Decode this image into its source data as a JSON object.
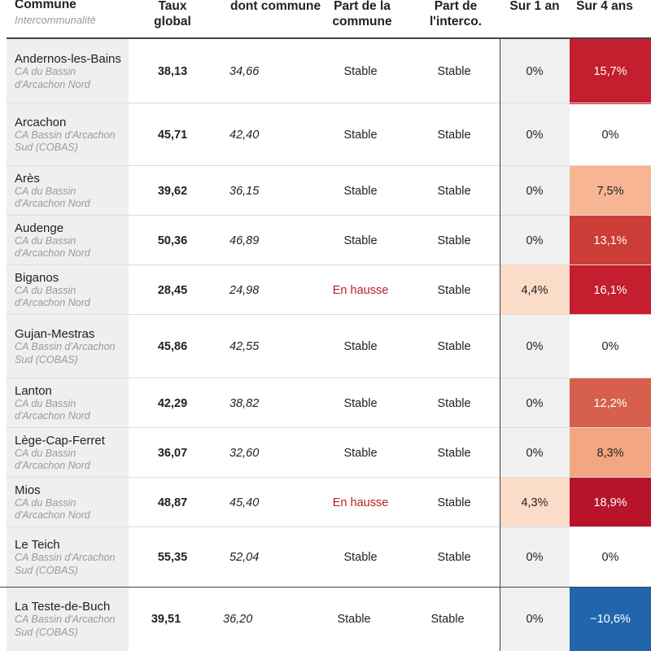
{
  "chart_data": {
    "type": "table",
    "columns": [
      {
        "label": "Commune",
        "sublabel": "Intercommunalité"
      },
      {
        "label": "Taux global"
      },
      {
        "label": "dont commune"
      },
      {
        "label": "Part de la commune"
      },
      {
        "label": "Part de l'interco."
      },
      {
        "label": "Sur 1 an"
      },
      {
        "label": "Sur 4 ans"
      }
    ],
    "rows": [
      {
        "commune": "Andernos-les-Bains",
        "interco": "CA du Bassin d'Arcachon Nord",
        "taux": "38,13",
        "dont": "34,66",
        "part_commune": "Stable",
        "part_interco": "Stable",
        "sur1": "0%",
        "sur4": "15,7%"
      },
      {
        "commune": "Arcachon",
        "interco": "CA Bassin d'Arcachon Sud (COBAS)",
        "taux": "45,71",
        "dont": "42,40",
        "part_commune": "Stable",
        "part_interco": "Stable",
        "sur1": "0%",
        "sur4": "0%"
      },
      {
        "commune": "Arès",
        "interco": "CA du Bassin d'Arcachon Nord",
        "taux": "39,62",
        "dont": "36,15",
        "part_commune": "Stable",
        "part_interco": "Stable",
        "sur1": "0%",
        "sur4": "7,5%"
      },
      {
        "commune": "Audenge",
        "interco": "CA du Bassin d'Arcachon Nord",
        "taux": "50,36",
        "dont": "46,89",
        "part_commune": "Stable",
        "part_interco": "Stable",
        "sur1": "0%",
        "sur4": "13,1%"
      },
      {
        "commune": "Biganos",
        "interco": "CA du Bassin d'Arcachon Nord",
        "taux": "28,45",
        "dont": "24,98",
        "part_commune": "En hausse",
        "part_interco": "Stable",
        "sur1": "4,4%",
        "sur4": "16,1%"
      },
      {
        "commune": "Gujan-Mestras",
        "interco": "CA Bassin d'Arcachon Sud (COBAS)",
        "taux": "45,86",
        "dont": "42,55",
        "part_commune": "Stable",
        "part_interco": "Stable",
        "sur1": "0%",
        "sur4": "0%"
      },
      {
        "commune": "Lanton",
        "interco": "CA du Bassin d'Arcachon Nord",
        "taux": "42,29",
        "dont": "38,82",
        "part_commune": "Stable",
        "part_interco": "Stable",
        "sur1": "0%",
        "sur4": "12,2%"
      },
      {
        "commune": "Lège-Cap-Ferret",
        "interco": "CA du Bassin d'Arcachon Nord",
        "taux": "36,07",
        "dont": "32,60",
        "part_commune": "Stable",
        "part_interco": "Stable",
        "sur1": "0%",
        "sur4": "8,3%"
      },
      {
        "commune": "Mios",
        "interco": "CA du Bassin d'Arcachon Nord",
        "taux": "48,87",
        "dont": "45,40",
        "part_commune": "En hausse",
        "part_interco": "Stable",
        "sur1": "4,3%",
        "sur4": "18,9%"
      },
      {
        "commune": "Le Teich",
        "interco": "CA Bassin d'Arcachon Sud (COBAS)",
        "taux": "55,35",
        "dont": "52,04",
        "part_commune": "Stable",
        "part_interco": "Stable",
        "sur1": "0%",
        "sur4": "0%"
      },
      {
        "commune": "La Teste-de-Buch",
        "interco": "CA Bassin d'Arcachon Sud (COBAS)",
        "taux": "39,51",
        "dont": "36,20",
        "part_commune": "Stable",
        "part_interco": "Stable",
        "sur1": "0%",
        "sur4": "−10,6%"
      }
    ]
  },
  "colors": {
    "sur1_high": "#fbdcc9",
    "sur4_scale": [
      {
        "min": 0.17,
        "color": "#b7142a"
      },
      {
        "min": 0.15,
        "color": "#c41e2f"
      },
      {
        "min": 0.125,
        "color": "#cb3d36"
      },
      {
        "min": 0.115,
        "color": "#d6604d"
      },
      {
        "min": 0.08,
        "color": "#f4a582"
      },
      {
        "min": 0.06,
        "color": "#f7b594"
      }
    ],
    "sur4_negative": "#2166ac",
    "hausse_text": "#b7201f"
  }
}
